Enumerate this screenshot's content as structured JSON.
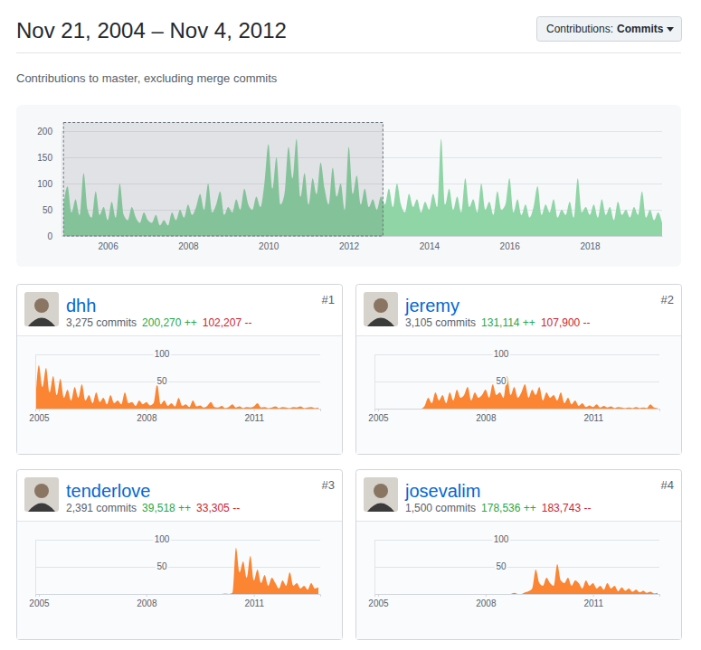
{
  "header": {
    "title": "Nov 21, 2004 – Nov 4, 2012",
    "button_label": "Contributions:",
    "button_value": "Commits",
    "subtitle": "Contributions to master, excluding merge commits"
  },
  "contributors": [
    {
      "rank": "#1",
      "login": "dhh",
      "commits": "3,275 commits",
      "additions": "200,270 ++",
      "deletions": "102,207 --"
    },
    {
      "rank": "#2",
      "login": "jeremy",
      "commits": "3,105 commits",
      "additions": "131,114 ++",
      "deletions": "107,900 --"
    },
    {
      "rank": "#3",
      "login": "tenderlove",
      "commits": "2,391 commits",
      "additions": "39,518 ++",
      "deletions": "33,305 --"
    },
    {
      "rank": "#4",
      "login": "josevalim",
      "commits": "1,500 commits",
      "additions": "178,536 ++",
      "deletions": "183,743 --"
    }
  ],
  "chart_data": [
    {
      "type": "area",
      "color": "#8fd5a6",
      "grid": true,
      "xlim": [
        2004.85,
        2019.8
      ],
      "xticks": [
        2006,
        2008,
        2010,
        2012,
        2014,
        2016,
        2018
      ],
      "ylim": [
        0,
        200
      ],
      "yticks": [
        0,
        50,
        100,
        150,
        200
      ],
      "x": [
        2004.9,
        2005.0,
        2005.1,
        2005.2,
        2005.3,
        2005.4,
        2005.5,
        2005.6,
        2005.7,
        2005.8,
        2005.9,
        2006.0,
        2006.1,
        2006.2,
        2006.3,
        2006.4,
        2006.5,
        2006.6,
        2006.7,
        2006.8,
        2006.9,
        2007.0,
        2007.1,
        2007.2,
        2007.3,
        2007.4,
        2007.5,
        2007.6,
        2007.7,
        2007.8,
        2007.9,
        2008.0,
        2008.1,
        2008.2,
        2008.3,
        2008.4,
        2008.5,
        2008.6,
        2008.7,
        2008.8,
        2008.9,
        2009.0,
        2009.1,
        2009.2,
        2009.3,
        2009.4,
        2009.5,
        2009.6,
        2009.7,
        2009.8,
        2009.9,
        2010.0,
        2010.1,
        2010.2,
        2010.3,
        2010.4,
        2010.5,
        2010.6,
        2010.7,
        2010.8,
        2010.9,
        2011.0,
        2011.1,
        2011.2,
        2011.3,
        2011.4,
        2011.5,
        2011.6,
        2011.7,
        2011.8,
        2011.9,
        2012.0,
        2012.1,
        2012.2,
        2012.3,
        2012.4,
        2012.5,
        2012.6,
        2012.7,
        2012.8,
        2012.9,
        2013.0,
        2013.1,
        2013.2,
        2013.3,
        2013.4,
        2013.5,
        2013.6,
        2013.7,
        2013.8,
        2013.9,
        2014.0,
        2014.1,
        2014.2,
        2014.3,
        2014.4,
        2014.5,
        2014.6,
        2014.7,
        2014.8,
        2014.9,
        2015.0,
        2015.1,
        2015.2,
        2015.3,
        2015.4,
        2015.5,
        2015.6,
        2015.7,
        2015.8,
        2015.9,
        2016.0,
        2016.1,
        2016.2,
        2016.3,
        2016.4,
        2016.5,
        2016.6,
        2016.7,
        2016.8,
        2016.9,
        2017.0,
        2017.1,
        2017.2,
        2017.3,
        2017.4,
        2017.5,
        2017.6,
        2017.7,
        2017.8,
        2017.9,
        2018.0,
        2018.1,
        2018.2,
        2018.3,
        2018.4,
        2018.5,
        2018.6,
        2018.7,
        2018.8,
        2018.9,
        2019.0,
        2019.1,
        2019.2,
        2019.3,
        2019.4,
        2019.5,
        2019.6,
        2019.7,
        2019.8
      ],
      "values": [
        60,
        95,
        45,
        70,
        40,
        120,
        50,
        35,
        85,
        40,
        55,
        30,
        65,
        35,
        100,
        40,
        30,
        55,
        35,
        25,
        45,
        30,
        25,
        40,
        20,
        30,
        20,
        45,
        30,
        50,
        35,
        60,
        40,
        55,
        80,
        50,
        100,
        45,
        60,
        85,
        40,
        55,
        45,
        70,
        50,
        90,
        60,
        50,
        75,
        55,
        100,
        175,
        90,
        150,
        60,
        80,
        170,
        110,
        185,
        75,
        120,
        60,
        110,
        80,
        140,
        90,
        60,
        130,
        75,
        100,
        50,
        170,
        80,
        115,
        60,
        90,
        55,
        70,
        50,
        75,
        60,
        90,
        55,
        100,
        60,
        45,
        80,
        55,
        70,
        45,
        65,
        50,
        80,
        55,
        185,
        60,
        90,
        50,
        75,
        45,
        110,
        55,
        70,
        45,
        100,
        50,
        65,
        40,
        85,
        50,
        60,
        110,
        45,
        70,
        40,
        60,
        35,
        55,
        95,
        40,
        60,
        45,
        70,
        35,
        50,
        40,
        65,
        35,
        110,
        45,
        55,
        40,
        60,
        35,
        70,
        40,
        55,
        30,
        65,
        40,
        50,
        35,
        55,
        40,
        85,
        35,
        50,
        30,
        45,
        25
      ]
    },
    {
      "type": "area",
      "color": "#fb8532",
      "grid": true,
      "xlim": [
        2004.9,
        2012.85
      ],
      "xticks": [
        2005,
        2008,
        2011
      ],
      "ylim": [
        0,
        100
      ],
      "yticks": [
        50,
        100
      ],
      "x": [
        2004.9,
        2005.0,
        2005.1,
        2005.2,
        2005.3,
        2005.4,
        2005.5,
        2005.6,
        2005.7,
        2005.8,
        2005.9,
        2006.0,
        2006.1,
        2006.2,
        2006.3,
        2006.4,
        2006.5,
        2006.6,
        2006.7,
        2006.8,
        2006.9,
        2007.0,
        2007.1,
        2007.2,
        2007.3,
        2007.4,
        2007.5,
        2007.6,
        2007.7,
        2007.8,
        2007.9,
        2008.0,
        2008.1,
        2008.2,
        2008.3,
        2008.4,
        2008.5,
        2008.6,
        2008.7,
        2008.8,
        2008.9,
        2009.0,
        2009.1,
        2009.2,
        2009.3,
        2009.4,
        2009.5,
        2009.6,
        2009.7,
        2009.8,
        2009.9,
        2010.0,
        2010.1,
        2010.2,
        2010.3,
        2010.4,
        2010.5,
        2010.6,
        2010.7,
        2010.8,
        2010.9,
        2011.0,
        2011.1,
        2011.2,
        2011.3,
        2011.4,
        2011.5,
        2011.6,
        2011.7,
        2011.8,
        2011.9,
        2012.0,
        2012.1,
        2012.2,
        2012.3,
        2012.4,
        2012.5,
        2012.6,
        2012.7,
        2012.8
      ],
      "values": [
        10,
        80,
        40,
        75,
        30,
        60,
        25,
        55,
        20,
        35,
        15,
        40,
        20,
        45,
        15,
        25,
        10,
        30,
        12,
        20,
        8,
        25,
        10,
        15,
        8,
        30,
        10,
        12,
        5,
        15,
        8,
        12,
        6,
        10,
        45,
        8,
        15,
        5,
        10,
        4,
        20,
        5,
        8,
        3,
        15,
        4,
        6,
        2,
        5,
        12,
        3,
        2,
        5,
        1,
        3,
        8,
        2,
        4,
        1,
        3,
        2,
        4,
        10,
        2,
        3,
        1,
        2,
        4,
        1,
        3,
        2,
        1,
        3,
        2,
        4,
        1,
        2,
        3,
        1,
        2
      ]
    },
    {
      "type": "area",
      "color": "#fb8532",
      "grid": true,
      "xlim": [
        2004.9,
        2012.85
      ],
      "xticks": [
        2005,
        2008,
        2011
      ],
      "ylim": [
        0,
        100
      ],
      "yticks": [
        50,
        100
      ],
      "x": [
        2004.9,
        2005.0,
        2005.1,
        2005.2,
        2005.3,
        2005.4,
        2005.5,
        2005.6,
        2005.7,
        2005.8,
        2005.9,
        2006.0,
        2006.1,
        2006.2,
        2006.3,
        2006.4,
        2006.5,
        2006.6,
        2006.7,
        2006.8,
        2006.9,
        2007.0,
        2007.1,
        2007.2,
        2007.3,
        2007.4,
        2007.5,
        2007.6,
        2007.7,
        2007.8,
        2007.9,
        2008.0,
        2008.1,
        2008.2,
        2008.3,
        2008.4,
        2008.5,
        2008.6,
        2008.7,
        2008.8,
        2008.9,
        2009.0,
        2009.1,
        2009.2,
        2009.3,
        2009.4,
        2009.5,
        2009.6,
        2009.7,
        2009.8,
        2009.9,
        2010.0,
        2010.1,
        2010.2,
        2010.3,
        2010.4,
        2010.5,
        2010.6,
        2010.7,
        2010.8,
        2010.9,
        2011.0,
        2011.1,
        2011.2,
        2011.3,
        2011.4,
        2011.5,
        2011.6,
        2011.7,
        2011.8,
        2011.9,
        2012.0,
        2012.1,
        2012.2,
        2012.3,
        2012.4,
        2012.5,
        2012.6,
        2012.7,
        2012.8
      ],
      "values": [
        0,
        0,
        0,
        0,
        0,
        0,
        0,
        0,
        0,
        0,
        0,
        0,
        0,
        0,
        5,
        20,
        10,
        30,
        15,
        25,
        10,
        30,
        15,
        35,
        20,
        25,
        40,
        15,
        30,
        20,
        25,
        35,
        20,
        45,
        25,
        30,
        20,
        60,
        25,
        40,
        20,
        30,
        45,
        20,
        35,
        25,
        40,
        15,
        30,
        20,
        25,
        15,
        30,
        10,
        20,
        8,
        15,
        5,
        10,
        3,
        6,
        3,
        8,
        2,
        5,
        2,
        4,
        1,
        3,
        2,
        1,
        2,
        1,
        3,
        1,
        2,
        1,
        8,
        2,
        1
      ]
    },
    {
      "type": "area",
      "color": "#fb8532",
      "grid": true,
      "xlim": [
        2004.9,
        2012.85
      ],
      "xticks": [
        2005,
        2008,
        2011
      ],
      "ylim": [
        0,
        100
      ],
      "yticks": [
        50,
        100
      ],
      "x": [
        2004.9,
        2005.0,
        2005.1,
        2005.2,
        2005.3,
        2005.4,
        2005.5,
        2005.6,
        2005.7,
        2005.8,
        2005.9,
        2006.0,
        2006.1,
        2006.2,
        2006.3,
        2006.4,
        2006.5,
        2006.6,
        2006.7,
        2006.8,
        2006.9,
        2007.0,
        2007.1,
        2007.2,
        2007.3,
        2007.4,
        2007.5,
        2007.6,
        2007.7,
        2007.8,
        2007.9,
        2008.0,
        2008.1,
        2008.2,
        2008.3,
        2008.4,
        2008.5,
        2008.6,
        2008.7,
        2008.8,
        2008.9,
        2009.0,
        2009.1,
        2009.2,
        2009.3,
        2009.4,
        2009.5,
        2009.6,
        2009.7,
        2009.8,
        2009.9,
        2010.0,
        2010.1,
        2010.2,
        2010.3,
        2010.4,
        2010.5,
        2010.6,
        2010.7,
        2010.8,
        2010.9,
        2011.0,
        2011.1,
        2011.2,
        2011.3,
        2011.4,
        2011.5,
        2011.6,
        2011.7,
        2011.8,
        2011.9,
        2012.0,
        2012.1,
        2012.2,
        2012.3,
        2012.4,
        2012.5,
        2012.6,
        2012.7,
        2012.8
      ],
      "values": [
        0,
        0,
        0,
        0,
        0,
        0,
        0,
        0,
        0,
        0,
        0,
        0,
        0,
        0,
        0,
        0,
        0,
        0,
        0,
        0,
        0,
        0,
        0,
        0,
        0,
        0,
        0,
        0,
        0,
        0,
        0,
        0,
        0,
        0,
        0,
        0,
        0,
        0,
        0,
        0,
        0,
        0,
        0,
        0,
        0,
        0,
        0,
        0,
        0,
        0,
        0,
        0,
        0,
        1,
        0,
        2,
        85,
        40,
        60,
        30,
        70,
        25,
        45,
        20,
        35,
        15,
        30,
        20,
        10,
        25,
        15,
        40,
        15,
        20,
        10,
        15,
        8,
        20,
        10,
        12
      ]
    },
    {
      "type": "area",
      "color": "#fb8532",
      "grid": true,
      "xlim": [
        2004.9,
        2012.85
      ],
      "xticks": [
        2005,
        2008,
        2011
      ],
      "ylim": [
        0,
        100
      ],
      "yticks": [
        50,
        100
      ],
      "x": [
        2004.9,
        2005.0,
        2005.1,
        2005.2,
        2005.3,
        2005.4,
        2005.5,
        2005.6,
        2005.7,
        2005.8,
        2005.9,
        2006.0,
        2006.1,
        2006.2,
        2006.3,
        2006.4,
        2006.5,
        2006.6,
        2006.7,
        2006.8,
        2006.9,
        2007.0,
        2007.1,
        2007.2,
        2007.3,
        2007.4,
        2007.5,
        2007.6,
        2007.7,
        2007.8,
        2007.9,
        2008.0,
        2008.1,
        2008.2,
        2008.3,
        2008.4,
        2008.5,
        2008.6,
        2008.7,
        2008.8,
        2008.9,
        2009.0,
        2009.1,
        2009.2,
        2009.3,
        2009.4,
        2009.5,
        2009.6,
        2009.7,
        2009.8,
        2009.9,
        2010.0,
        2010.1,
        2010.2,
        2010.3,
        2010.4,
        2010.5,
        2010.6,
        2010.7,
        2010.8,
        2010.9,
        2011.0,
        2011.1,
        2011.2,
        2011.3,
        2011.4,
        2011.5,
        2011.6,
        2011.7,
        2011.8,
        2011.9,
        2012.0,
        2012.1,
        2012.2,
        2012.3,
        2012.4,
        2012.5,
        2012.6,
        2012.7,
        2012.8
      ],
      "values": [
        0,
        0,
        0,
        0,
        0,
        0,
        0,
        0,
        0,
        0,
        0,
        0,
        0,
        0,
        0,
        0,
        0,
        0,
        0,
        0,
        0,
        0,
        0,
        0,
        0,
        0,
        0,
        0,
        0,
        0,
        0,
        0,
        0,
        0,
        0,
        0,
        0,
        0,
        0,
        2,
        0,
        0,
        3,
        5,
        10,
        45,
        20,
        15,
        30,
        20,
        15,
        55,
        25,
        20,
        30,
        15,
        25,
        20,
        10,
        25,
        15,
        20,
        10,
        15,
        8,
        20,
        10,
        15,
        5,
        12,
        6,
        10,
        4,
        8,
        3,
        6,
        2,
        4,
        1,
        2
      ]
    }
  ]
}
